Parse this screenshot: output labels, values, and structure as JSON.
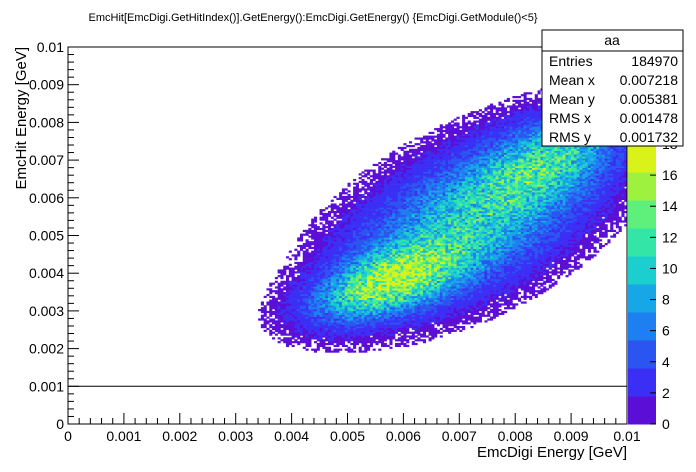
{
  "chart_data": {
    "type": "heatmap",
    "title": "EmcHit[EmcDigi.GetHitIndex()].GetEnergy():EmcDigi.GetEnergy() {EmcDigi.GetModule()<5}",
    "xlabel": "EmcDigi Energy [GeV]",
    "ylabel": "EmcHit Energy [GeV]",
    "xlim": [
      0,
      0.01
    ],
    "ylim": [
      0,
      0.01
    ],
    "x_ticks": [
      "0",
      "0.001",
      "0.002",
      "0.003",
      "0.004",
      "0.005",
      "0.006",
      "0.007",
      "0.008",
      "0.009",
      "0.01"
    ],
    "y_ticks": [
      "0",
      "0.001",
      "0.002",
      "0.003",
      "0.004",
      "0.005",
      "0.006",
      "0.007",
      "0.008",
      "0.009",
      "0.01"
    ],
    "z_range": [
      0,
      18
    ],
    "z_ticks": [
      "0",
      "2",
      "4",
      "6",
      "8",
      "10",
      "12",
      "14",
      "16",
      "18"
    ],
    "cut_line_y": 0.001,
    "palette": [
      "#5b0fd6",
      "#3b2ff5",
      "#2a55f0",
      "#1e7ff0",
      "#17a6e6",
      "#1ccfcf",
      "#33e6a8",
      "#5ef07a",
      "#9ef23f",
      "#d8f21a"
    ],
    "density_model": {
      "components": [
        {
          "x": 0.0058,
          "y": 0.0038,
          "sx": 0.0008,
          "sy": 0.0006,
          "w": 1.0
        },
        {
          "x": 0.0072,
          "y": 0.0054,
          "sx": 0.0013,
          "sy": 0.0013,
          "w": 0.62
        },
        {
          "x": 0.0086,
          "y": 0.007,
          "sx": 0.0008,
          "sy": 0.0008,
          "w": 0.55
        }
      ],
      "diagonal_rho": 0.55
    },
    "stats_box": {
      "name": "aa",
      "rows": [
        {
          "label": "Entries",
          "value": "184970"
        },
        {
          "label": "Mean x",
          "value": "0.007218"
        },
        {
          "label": "Mean y",
          "value": "0.005381"
        },
        {
          "label": "RMS x",
          "value": "0.001478"
        },
        {
          "label": "RMS y",
          "value": "0.001732"
        }
      ]
    }
  }
}
